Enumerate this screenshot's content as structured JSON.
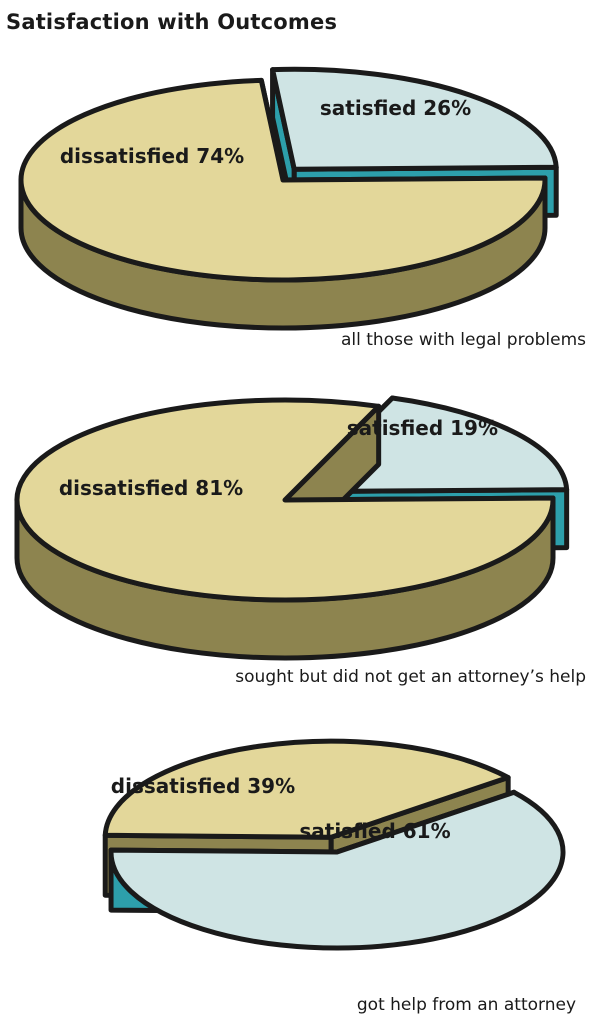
{
  "title": "Satisfaction with Outcomes",
  "colors": {
    "satisfied_top": "#cfe4e4",
    "satisfied_side": "#2d9fab",
    "dissatisfied_top": "#e3d79a",
    "dissatisfied_side": "#8d844f",
    "outline": "#1a1a1a"
  },
  "chart_data": [
    {
      "type": "pie",
      "title": "",
      "caption": "all those with legal problems",
      "slices": [
        {
          "name": "satisfied",
          "label": "satisfied 26%",
          "value": 26
        },
        {
          "name": "dissatisfied",
          "label": "dissatisfied 74%",
          "value": 74
        }
      ],
      "exploded_slice": "satisfied"
    },
    {
      "type": "pie",
      "title": "",
      "caption": "sought but did not get an attorney’s help",
      "slices": [
        {
          "name": "satisfied",
          "label": "satisfied 19%",
          "value": 19
        },
        {
          "name": "dissatisfied",
          "label": "dissatisfied  81%",
          "value": 81
        }
      ],
      "exploded_slice": "satisfied"
    },
    {
      "type": "pie",
      "title": "",
      "caption": "got help from an attorney",
      "slices": [
        {
          "name": "satisfied",
          "label": "satisfied  61%",
          "value": 61
        },
        {
          "name": "dissatisfied",
          "label": "dissatisfied 39%",
          "value": 39
        }
      ],
      "exploded_slice": "dissatisfied"
    }
  ]
}
